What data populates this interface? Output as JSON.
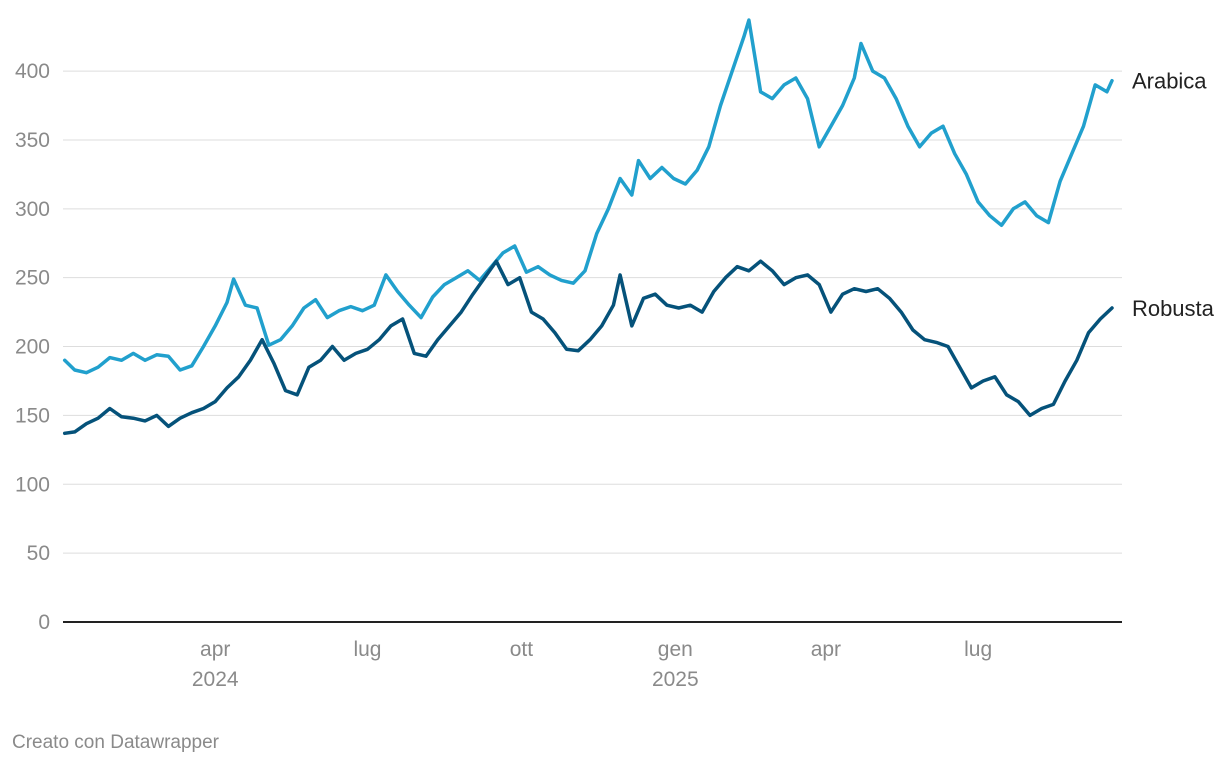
{
  "chart_data": {
    "type": "line",
    "title": "",
    "xlabel": "",
    "ylabel": "",
    "ylim": [
      0,
      440
    ],
    "yticks": [
      0,
      50,
      100,
      150,
      200,
      250,
      300,
      350,
      400
    ],
    "xlim": [
      "2024-01-01",
      "2025-09-25"
    ],
    "xticks": [
      {
        "date": "2024-04-01",
        "label": "apr",
        "year": "2024"
      },
      {
        "date": "2024-07-01",
        "label": "lug",
        "year": ""
      },
      {
        "date": "2024-10-01",
        "label": "ott",
        "year": ""
      },
      {
        "date": "2025-01-01",
        "label": "gen",
        "year": "2025"
      },
      {
        "date": "2025-04-01",
        "label": "apr",
        "year": ""
      },
      {
        "date": "2025-07-01",
        "label": "lug",
        "year": ""
      }
    ],
    "grid": true,
    "legend": "inline-right",
    "colors": {
      "Arabica": "#21a0cd",
      "Robusta": "#05527a",
      "grid": "#dddddd",
      "axis": "#222222"
    },
    "series": [
      {
        "name": "Arabica",
        "points": [
          [
            "2024-01-02",
            190
          ],
          [
            "2024-01-08",
            183
          ],
          [
            "2024-01-15",
            181
          ],
          [
            "2024-01-22",
            185
          ],
          [
            "2024-01-29",
            192
          ],
          [
            "2024-02-05",
            190
          ],
          [
            "2024-02-12",
            195
          ],
          [
            "2024-02-19",
            190
          ],
          [
            "2024-02-26",
            194
          ],
          [
            "2024-03-04",
            193
          ],
          [
            "2024-03-11",
            183
          ],
          [
            "2024-03-18",
            186
          ],
          [
            "2024-03-25",
            200
          ],
          [
            "2024-04-01",
            215
          ],
          [
            "2024-04-08",
            232
          ],
          [
            "2024-04-12",
            249
          ],
          [
            "2024-04-19",
            230
          ],
          [
            "2024-04-26",
            228
          ],
          [
            "2024-05-03",
            201
          ],
          [
            "2024-05-10",
            205
          ],
          [
            "2024-05-17",
            215
          ],
          [
            "2024-05-24",
            228
          ],
          [
            "2024-05-31",
            234
          ],
          [
            "2024-06-07",
            221
          ],
          [
            "2024-06-14",
            226
          ],
          [
            "2024-06-21",
            229
          ],
          [
            "2024-06-28",
            226
          ],
          [
            "2024-07-05",
            230
          ],
          [
            "2024-07-12",
            252
          ],
          [
            "2024-07-19",
            240
          ],
          [
            "2024-07-26",
            230
          ],
          [
            "2024-08-02",
            221
          ],
          [
            "2024-08-09",
            236
          ],
          [
            "2024-08-16",
            245
          ],
          [
            "2024-08-23",
            250
          ],
          [
            "2024-08-30",
            255
          ],
          [
            "2024-09-06",
            248
          ],
          [
            "2024-09-13",
            258
          ],
          [
            "2024-09-20",
            268
          ],
          [
            "2024-09-27",
            273
          ],
          [
            "2024-10-04",
            254
          ],
          [
            "2024-10-11",
            258
          ],
          [
            "2024-10-18",
            252
          ],
          [
            "2024-10-25",
            248
          ],
          [
            "2024-11-01",
            246
          ],
          [
            "2024-11-08",
            255
          ],
          [
            "2024-11-15",
            282
          ],
          [
            "2024-11-22",
            300
          ],
          [
            "2024-11-29",
            322
          ],
          [
            "2024-12-06",
            310
          ],
          [
            "2024-12-10",
            335
          ],
          [
            "2024-12-17",
            322
          ],
          [
            "2024-12-24",
            330
          ],
          [
            "2024-12-31",
            322
          ],
          [
            "2025-01-07",
            318
          ],
          [
            "2025-01-14",
            328
          ],
          [
            "2025-01-21",
            345
          ],
          [
            "2025-01-28",
            375
          ],
          [
            "2025-02-04",
            400
          ],
          [
            "2025-02-11",
            425
          ],
          [
            "2025-02-14",
            437
          ],
          [
            "2025-02-21",
            385
          ],
          [
            "2025-02-28",
            380
          ],
          [
            "2025-03-07",
            390
          ],
          [
            "2025-03-14",
            395
          ],
          [
            "2025-03-21",
            380
          ],
          [
            "2025-03-28",
            345
          ],
          [
            "2025-04-04",
            360
          ],
          [
            "2025-04-11",
            375
          ],
          [
            "2025-04-18",
            395
          ],
          [
            "2025-04-22",
            420
          ],
          [
            "2025-04-29",
            400
          ],
          [
            "2025-05-06",
            395
          ],
          [
            "2025-05-13",
            380
          ],
          [
            "2025-05-20",
            360
          ],
          [
            "2025-05-27",
            345
          ],
          [
            "2025-06-03",
            355
          ],
          [
            "2025-06-10",
            360
          ],
          [
            "2025-06-17",
            340
          ],
          [
            "2025-06-24",
            325
          ],
          [
            "2025-07-01",
            305
          ],
          [
            "2025-07-08",
            295
          ],
          [
            "2025-07-15",
            288
          ],
          [
            "2025-07-22",
            300
          ],
          [
            "2025-07-29",
            305
          ],
          [
            "2025-08-05",
            295
          ],
          [
            "2025-08-12",
            290
          ],
          [
            "2025-08-19",
            320
          ],
          [
            "2025-08-26",
            340
          ],
          [
            "2025-09-02",
            360
          ],
          [
            "2025-09-09",
            390
          ],
          [
            "2025-09-16",
            385
          ],
          [
            "2025-09-19",
            393
          ]
        ]
      },
      {
        "name": "Robusta",
        "points": [
          [
            "2024-01-02",
            137
          ],
          [
            "2024-01-08",
            138
          ],
          [
            "2024-01-15",
            144
          ],
          [
            "2024-01-22",
            148
          ],
          [
            "2024-01-29",
            155
          ],
          [
            "2024-02-05",
            149
          ],
          [
            "2024-02-12",
            148
          ],
          [
            "2024-02-19",
            146
          ],
          [
            "2024-02-26",
            150
          ],
          [
            "2024-03-04",
            142
          ],
          [
            "2024-03-11",
            148
          ],
          [
            "2024-03-18",
            152
          ],
          [
            "2024-03-25",
            155
          ],
          [
            "2024-04-01",
            160
          ],
          [
            "2024-04-08",
            170
          ],
          [
            "2024-04-15",
            178
          ],
          [
            "2024-04-22",
            190
          ],
          [
            "2024-04-29",
            205
          ],
          [
            "2024-05-06",
            188
          ],
          [
            "2024-05-13",
            168
          ],
          [
            "2024-05-20",
            165
          ],
          [
            "2024-05-27",
            185
          ],
          [
            "2024-06-03",
            190
          ],
          [
            "2024-06-10",
            200
          ],
          [
            "2024-06-17",
            190
          ],
          [
            "2024-06-24",
            195
          ],
          [
            "2024-07-01",
            198
          ],
          [
            "2024-07-08",
            205
          ],
          [
            "2024-07-15",
            215
          ],
          [
            "2024-07-22",
            220
          ],
          [
            "2024-07-29",
            195
          ],
          [
            "2024-08-05",
            193
          ],
          [
            "2024-08-12",
            205
          ],
          [
            "2024-08-19",
            215
          ],
          [
            "2024-08-26",
            225
          ],
          [
            "2024-09-02",
            238
          ],
          [
            "2024-09-09",
            250
          ],
          [
            "2024-09-16",
            262
          ],
          [
            "2024-09-23",
            245
          ],
          [
            "2024-09-30",
            250
          ],
          [
            "2024-10-07",
            225
          ],
          [
            "2024-10-14",
            220
          ],
          [
            "2024-10-21",
            210
          ],
          [
            "2024-10-28",
            198
          ],
          [
            "2024-11-04",
            197
          ],
          [
            "2024-11-11",
            205
          ],
          [
            "2024-11-18",
            215
          ],
          [
            "2024-11-25",
            230
          ],
          [
            "2024-11-29",
            252
          ],
          [
            "2024-12-06",
            215
          ],
          [
            "2024-12-13",
            235
          ],
          [
            "2024-12-20",
            238
          ],
          [
            "2024-12-27",
            230
          ],
          [
            "2025-01-03",
            228
          ],
          [
            "2025-01-10",
            230
          ],
          [
            "2025-01-17",
            225
          ],
          [
            "2025-01-24",
            240
          ],
          [
            "2025-01-31",
            250
          ],
          [
            "2025-02-07",
            258
          ],
          [
            "2025-02-14",
            255
          ],
          [
            "2025-02-21",
            262
          ],
          [
            "2025-02-28",
            255
          ],
          [
            "2025-03-07",
            245
          ],
          [
            "2025-03-14",
            250
          ],
          [
            "2025-03-21",
            252
          ],
          [
            "2025-03-28",
            245
          ],
          [
            "2025-04-04",
            225
          ],
          [
            "2025-04-11",
            238
          ],
          [
            "2025-04-18",
            242
          ],
          [
            "2025-04-25",
            240
          ],
          [
            "2025-05-02",
            242
          ],
          [
            "2025-05-09",
            235
          ],
          [
            "2025-05-16",
            225
          ],
          [
            "2025-05-23",
            212
          ],
          [
            "2025-05-30",
            205
          ],
          [
            "2025-06-06",
            203
          ],
          [
            "2025-06-13",
            200
          ],
          [
            "2025-06-20",
            185
          ],
          [
            "2025-06-27",
            170
          ],
          [
            "2025-07-04",
            175
          ],
          [
            "2025-07-11",
            178
          ],
          [
            "2025-07-18",
            165
          ],
          [
            "2025-07-25",
            160
          ],
          [
            "2025-08-01",
            150
          ],
          [
            "2025-08-08",
            155
          ],
          [
            "2025-08-15",
            158
          ],
          [
            "2025-08-22",
            175
          ],
          [
            "2025-08-29",
            190
          ],
          [
            "2025-09-05",
            210
          ],
          [
            "2025-09-12",
            220
          ],
          [
            "2025-09-19",
            228
          ]
        ]
      }
    ]
  },
  "credit": "Creato con Datawrapper"
}
